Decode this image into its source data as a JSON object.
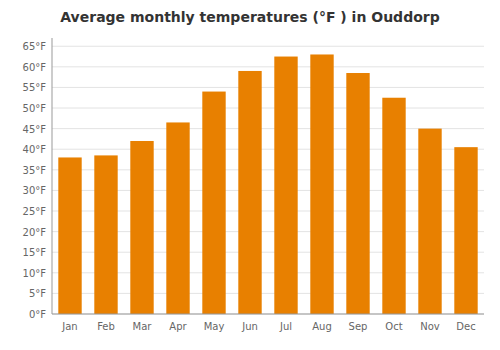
{
  "chart_data": {
    "type": "bar",
    "title": "Average monthly temperatures (°F ) in Ouddorp",
    "categories": [
      "Jan",
      "Feb",
      "Mar",
      "Apr",
      "May",
      "Jun",
      "Jul",
      "Aug",
      "Sep",
      "Oct",
      "Nov",
      "Dec"
    ],
    "values": [
      38,
      38.5,
      42,
      46.5,
      54,
      59,
      62.5,
      63,
      58.5,
      52.5,
      45,
      40.5
    ],
    "color": "#E88000",
    "ylim": [
      0,
      67
    ],
    "yticks": [
      {
        "value": 0,
        "label": "0°F"
      },
      {
        "value": 5,
        "label": "5°F"
      },
      {
        "value": 10,
        "label": "10°F"
      },
      {
        "value": 15,
        "label": "15°F"
      },
      {
        "value": 20,
        "label": "20°F"
      },
      {
        "value": 25,
        "label": "25°F"
      },
      {
        "value": 30,
        "label": "30°F"
      },
      {
        "value": 35,
        "label": "35°F"
      },
      {
        "value": 40,
        "label": "40°F"
      },
      {
        "value": 45,
        "label": "45°F"
      },
      {
        "value": 50,
        "label": "50°F"
      },
      {
        "value": 55,
        "label": "55°F"
      },
      {
        "value": 60,
        "label": "60°F"
      },
      {
        "value": 65,
        "label": "65°F"
      }
    ],
    "grid": true
  }
}
